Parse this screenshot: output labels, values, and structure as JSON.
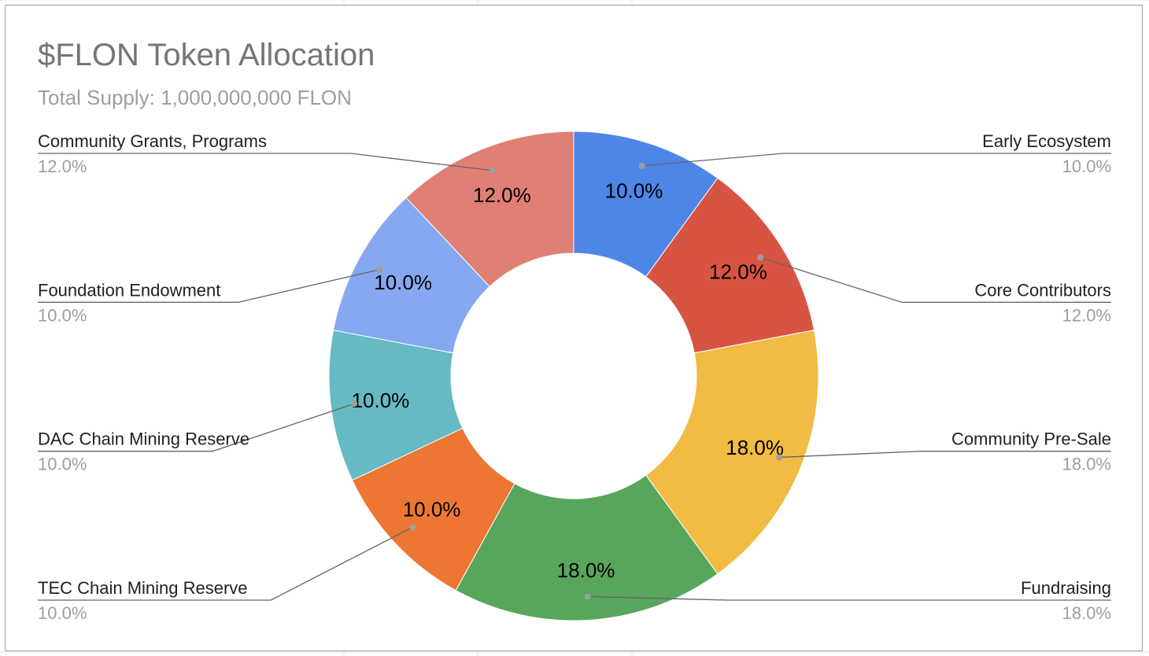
{
  "chart_data": {
    "type": "pie",
    "donut": true,
    "title": "$FLON Token Allocation",
    "subtitle": "Total Supply: 1,000,000,000 FLON",
    "slices": [
      {
        "label": "Early Ecosystem",
        "value": 10.0,
        "display": "10.0%",
        "color": "#4e86e8",
        "side": "right"
      },
      {
        "label": "Core Contributors",
        "value": 12.0,
        "display": "12.0%",
        "color": "#d85442",
        "side": "right"
      },
      {
        "label": "Community Pre-Sale",
        "value": 18.0,
        "display": "18.0%",
        "color": "#f2bb44",
        "side": "right"
      },
      {
        "label": "Fundraising",
        "value": 18.0,
        "display": "18.0%",
        "color": "#58a65c",
        "side": "right"
      },
      {
        "label": "TEC Chain Mining Reserve",
        "value": 10.0,
        "display": "10.0%",
        "color": "#ed7633",
        "side": "left"
      },
      {
        "label": "DAC Chain Mining Reserve",
        "value": 10.0,
        "display": "10.0%",
        "color": "#66bac3",
        "side": "left"
      },
      {
        "label": "Foundation Endowment",
        "value": 10.0,
        "display": "10.0%",
        "color": "#86a8f0",
        "side": "left"
      },
      {
        "label": "Community Grants, Programs",
        "value": 12.0,
        "display": "12.0%",
        "color": "#e07f73",
        "side": "left"
      }
    ]
  }
}
